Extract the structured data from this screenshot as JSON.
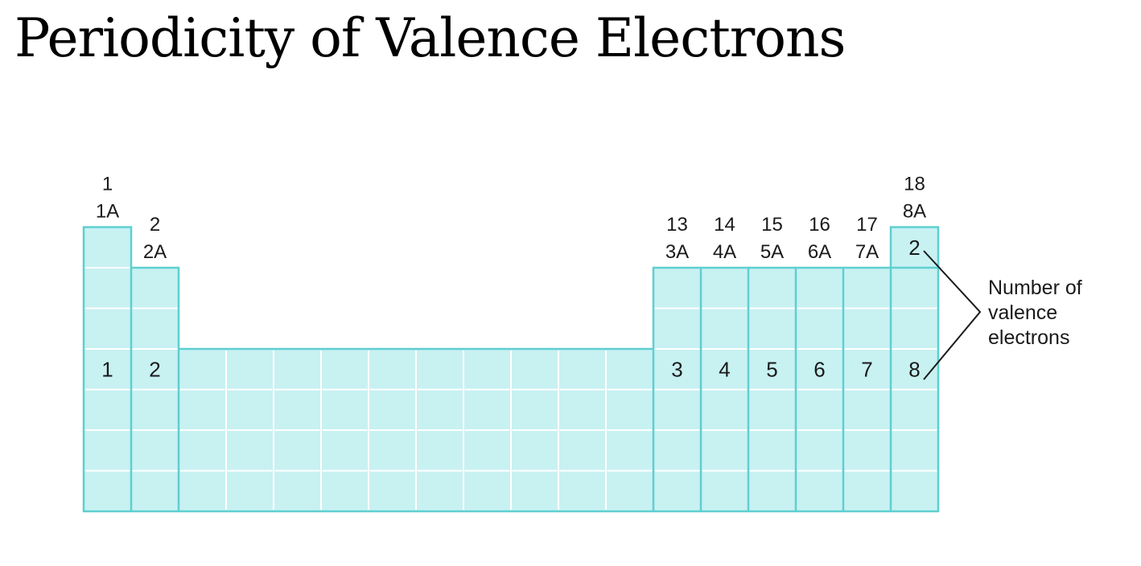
{
  "slide": {
    "title": "Periodicity of Valence Electrons"
  },
  "colors": {
    "cell_fill": "#c8f1f2",
    "cell_border": "#5fcfd0",
    "grid_line": "#ffffff"
  },
  "table": {
    "columns": [
      {
        "group_number": "1",
        "group_letter": "1A",
        "top_row": 1,
        "valence_label": "1"
      },
      {
        "group_number": "2",
        "group_letter": "2A",
        "top_row": 2,
        "valence_label": "2"
      },
      {
        "group_number": "",
        "group_letter": "",
        "top_row": 4,
        "valence_label": ""
      },
      {
        "group_number": "",
        "group_letter": "",
        "top_row": 4,
        "valence_label": ""
      },
      {
        "group_number": "",
        "group_letter": "",
        "top_row": 4,
        "valence_label": ""
      },
      {
        "group_number": "",
        "group_letter": "",
        "top_row": 4,
        "valence_label": ""
      },
      {
        "group_number": "",
        "group_letter": "",
        "top_row": 4,
        "valence_label": ""
      },
      {
        "group_number": "",
        "group_letter": "",
        "top_row": 4,
        "valence_label": ""
      },
      {
        "group_number": "",
        "group_letter": "",
        "top_row": 4,
        "valence_label": ""
      },
      {
        "group_number": "",
        "group_letter": "",
        "top_row": 4,
        "valence_label": ""
      },
      {
        "group_number": "",
        "group_letter": "",
        "top_row": 4,
        "valence_label": ""
      },
      {
        "group_number": "",
        "group_letter": "",
        "top_row": 4,
        "valence_label": ""
      },
      {
        "group_number": "13",
        "group_letter": "3A",
        "top_row": 2,
        "valence_label": "3"
      },
      {
        "group_number": "14",
        "group_letter": "4A",
        "top_row": 2,
        "valence_label": "4"
      },
      {
        "group_number": "15",
        "group_letter": "5A",
        "top_row": 2,
        "valence_label": "5"
      },
      {
        "group_number": "16",
        "group_letter": "6A",
        "top_row": 2,
        "valence_label": "6"
      },
      {
        "group_number": "17",
        "group_letter": "7A",
        "top_row": 2,
        "valence_label": "7"
      },
      {
        "group_number": "18",
        "group_letter": "8A",
        "top_row": 1,
        "valence_label": "8"
      }
    ],
    "helium_valence_label": "2",
    "annotation_lines": [
      "Number of",
      "valence",
      "electrons"
    ]
  }
}
